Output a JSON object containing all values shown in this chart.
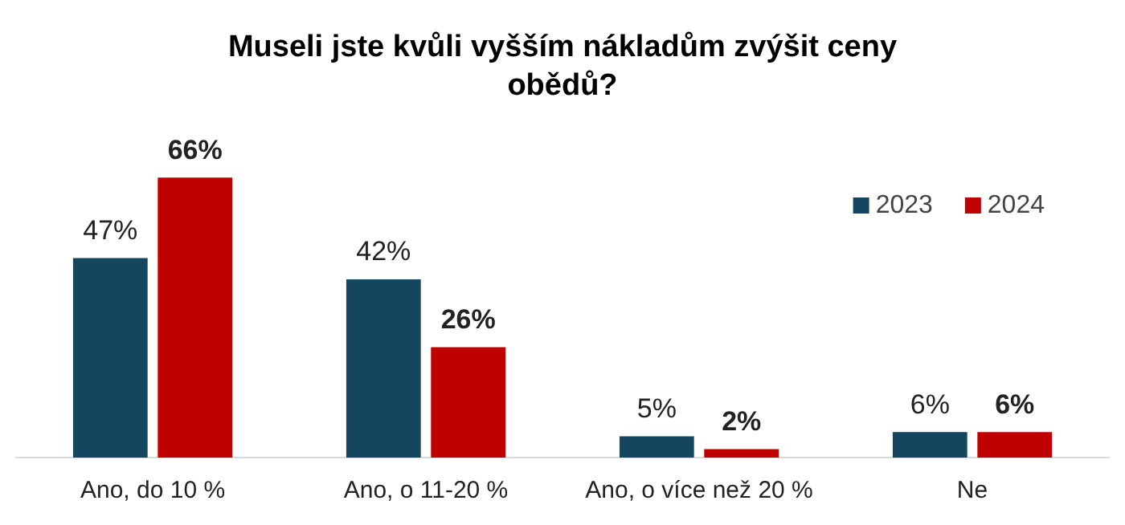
{
  "chart_data": {
    "type": "bar",
    "title": "Museli jste kvůli vyšším nákladům zvýšit ceny obědů?",
    "categories": [
      "Ano, do 10 %",
      "Ano, o 11-20 %",
      "Ano, o více než 20 %",
      "Ne"
    ],
    "series": [
      {
        "name": "2023",
        "color": "#154660",
        "values": [
          47,
          42,
          5,
          6
        ],
        "value_labels": [
          "47%",
          "42%",
          "5%",
          "6%"
        ]
      },
      {
        "name": "2024",
        "color": "#c00000",
        "values": [
          66,
          26,
          2,
          6
        ],
        "value_labels": [
          "66%",
          "26%",
          "2%",
          "6%"
        ]
      }
    ],
    "legend": "top right",
    "grid": false
  }
}
